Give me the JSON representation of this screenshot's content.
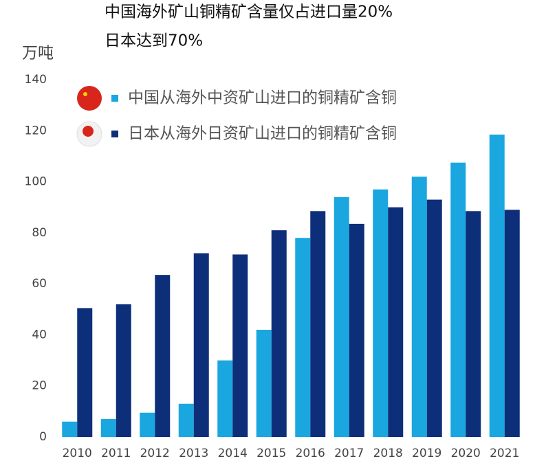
{
  "chart_data": {
    "type": "bar",
    "title": "中国海外矿山铜精矿含量仅占进口量20%",
    "subtitle": "日本达到70%",
    "y_label": "万吨",
    "categories": [
      "2010",
      "2011",
      "2012",
      "2013",
      "2014",
      "2015",
      "2016",
      "2017",
      "2018",
      "2019",
      "2020",
      "2021"
    ],
    "series": [
      {
        "name": "中国从海外中资矿山进口的铜精矿含铜",
        "color": "#1aa7e0",
        "values": [
          6,
          7,
          9.5,
          13,
          30,
          42,
          78,
          94,
          97,
          102,
          107.5,
          118.5
        ]
      },
      {
        "name": "日本从海外日资矿山进口的铜精矿含铜",
        "color": "#0d2f7a",
        "values": [
          50.5,
          52,
          63.5,
          72,
          71.5,
          81,
          88.5,
          83.5,
          90,
          93,
          88.5,
          89
        ]
      }
    ],
    "ylim": [
      0,
      140
    ],
    "yticks": [
      0,
      20,
      40,
      60,
      80,
      100,
      120,
      140
    ],
    "grid": false
  }
}
